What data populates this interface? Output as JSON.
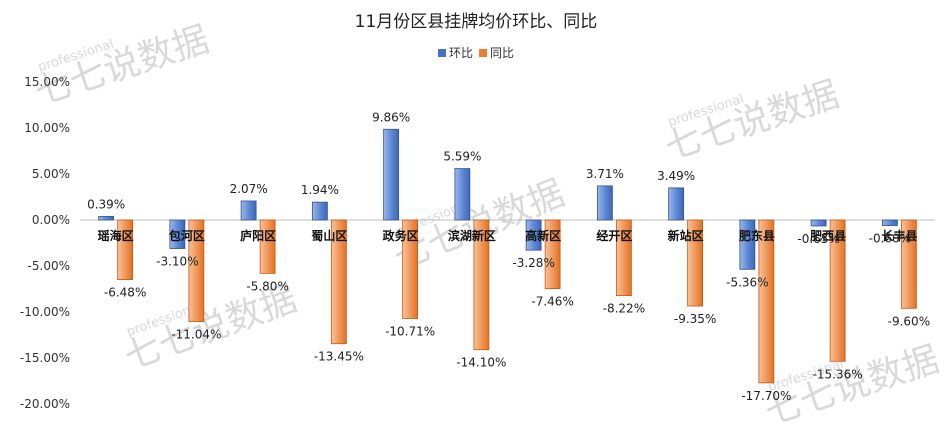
{
  "watermark": {
    "brand": "七七说数据",
    "sub": "professional"
  },
  "colors": {
    "mom": "#4472C4",
    "yoy": "#ED7D31"
  },
  "chart_data": {
    "type": "bar",
    "title": "11月份区县挂牌均价环比、同比",
    "categories": [
      "瑶海区",
      "包河区",
      "庐阳区",
      "蜀山区",
      "政务区",
      "滨湖新区",
      "高新区",
      "经开区",
      "新站区",
      "肥东县",
      "肥西县",
      "长丰县"
    ],
    "series": [
      {
        "name": "环比",
        "values": [
          0.39,
          -3.1,
          2.07,
          1.94,
          9.86,
          5.59,
          -3.28,
          3.71,
          3.49,
          -5.36,
          -0.65,
          -0.6
        ],
        "labels": [
          "0.39%",
          "-3.10%",
          "2.07%",
          "1.94%",
          "9.86%",
          "5.59%",
          "-3.28%",
          "3.71%",
          "3.49%",
          "-5.36%",
          "-0.65%",
          "-0.60%"
        ]
      },
      {
        "name": "同比",
        "values": [
          -6.48,
          -11.04,
          -5.8,
          -13.45,
          -10.71,
          -14.1,
          -7.46,
          -8.22,
          -9.35,
          -17.7,
          -15.36,
          -9.6
        ],
        "labels": [
          "-6.48%",
          "-11.04%",
          "-5.80%",
          "-13.45%",
          "-10.71%",
          "-14.10%",
          "-7.46%",
          "-8.22%",
          "-9.35%",
          "-17.70%",
          "-15.36%",
          "-9.60%"
        ]
      }
    ],
    "yticks": [
      "15.00%",
      "10.00%",
      "5.00%",
      "0.00%",
      "-5.00%",
      "-10.00%",
      "-15.00%",
      "-20.00%"
    ],
    "ylim": [
      -20,
      15
    ],
    "grid": false,
    "legend_position": "top-center"
  }
}
